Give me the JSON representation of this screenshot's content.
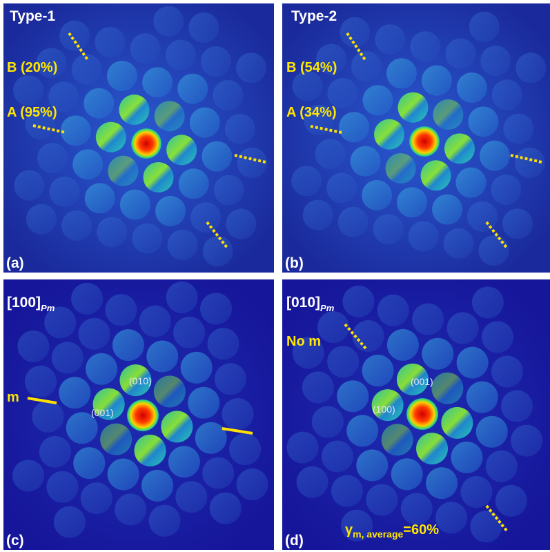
{
  "panels": [
    {
      "title": "Type-1",
      "annotations": [
        "B (20%)",
        "A (95%)"
      ],
      "label": "(a)"
    },
    {
      "title": "Type-2",
      "annotations": [
        "B (54%)",
        "A (34%)"
      ],
      "label": "(b)"
    },
    {
      "title": {
        "main": "[100]",
        "sub": "Pm"
      },
      "annotations": [
        "m"
      ],
      "indices": [
        "(010)",
        "(001)"
      ],
      "label": "(c)"
    },
    {
      "title": {
        "main": "[010]",
        "sub": "Pm"
      },
      "annotations": [
        "No m"
      ],
      "indices": [
        "(001)",
        "(100)"
      ],
      "formula": {
        "symbol": "γ",
        "sub": "m, average",
        "rest": "=60%"
      },
      "label": "(d)"
    }
  ]
}
